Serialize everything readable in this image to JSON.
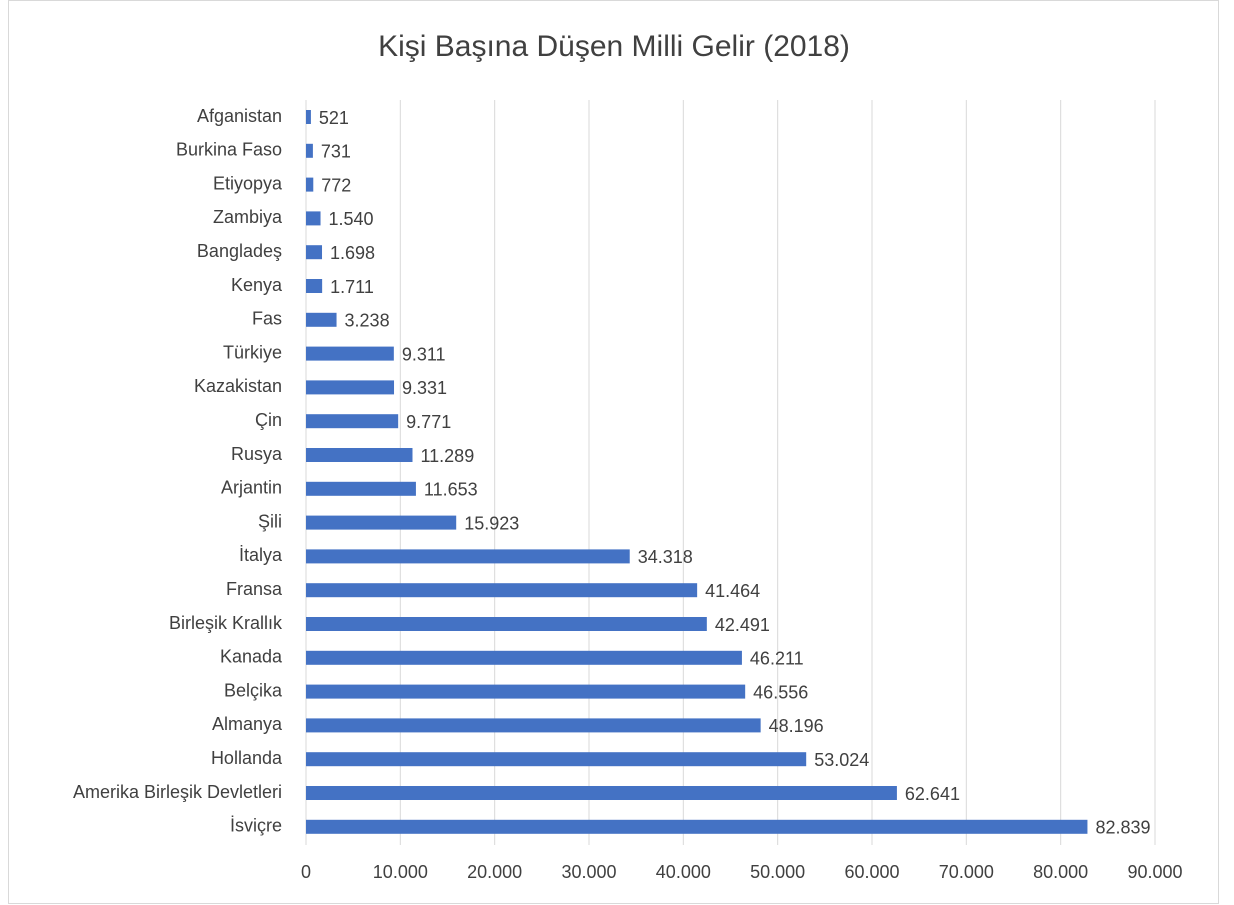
{
  "chart_data": {
    "type": "bar",
    "orientation": "horizontal",
    "title": "Kişi Başına Düşen Milli Gelir (2018)",
    "categories": [
      "Afganistan",
      "Burkina Faso",
      "Etiyopya",
      "Zambiya",
      "Bangladeş",
      "Kenya",
      "Fas",
      "Türkiye",
      "Kazakistan",
      "Çin",
      "Rusya",
      "Arjantin",
      "Şili",
      "İtalya",
      "Fransa",
      "Birleşik Krallık",
      "Kanada",
      "Belçika",
      "Almanya",
      "Hollanda",
      "Amerika Birleşik Devletleri",
      "İsviçre"
    ],
    "values": [
      521,
      731,
      772,
      1540,
      1698,
      1711,
      3238,
      9311,
      9331,
      9771,
      11289,
      11653,
      15923,
      34318,
      41464,
      42491,
      46211,
      46556,
      48196,
      53024,
      62641,
      82839
    ],
    "value_labels": [
      "521",
      "731",
      "772",
      "1.540",
      "1.698",
      "1.711",
      "3.238",
      "9.311",
      "9.331",
      "9.771",
      "11.289",
      "11.653",
      "15.923",
      "34.318",
      "41.464",
      "42.491",
      "46.211",
      "46.556",
      "48.196",
      "53.024",
      "62.641",
      "82.839"
    ],
    "color": "#4472c4",
    "xlim": [
      0,
      90000
    ],
    "xticks": [
      0,
      {
        "value": 10000,
        "label": "10.000"
      },
      {
        "value": 20000,
        "label": "20.000"
      },
      {
        "value": 30000,
        "label": "30.000"
      },
      {
        "value": 40000,
        "label": "40.000"
      },
      {
        "value": 50000,
        "label": "50.000"
      },
      {
        "value": 60000,
        "label": "60.000"
      },
      {
        "value": 70000,
        "label": "70.000"
      },
      {
        "value": 80000,
        "label": "80.000"
      },
      {
        "value": 90000,
        "label": "90.000"
      }
    ],
    "grid": true
  }
}
